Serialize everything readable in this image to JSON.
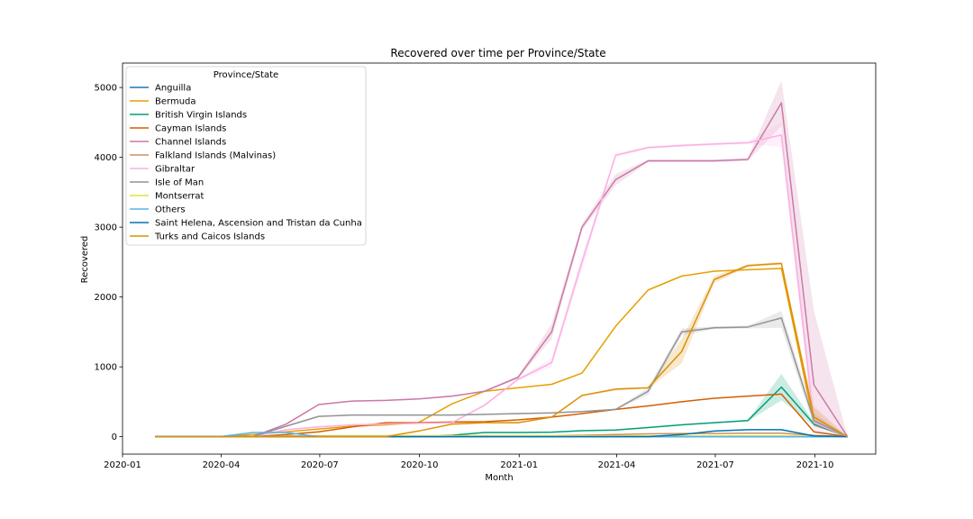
{
  "chart_data": {
    "type": "line",
    "title": "Recovered over time per Province/State",
    "xlabel": "Month",
    "ylabel": "Recovered",
    "xlim": [
      "2020-01-01",
      "2021-11-26"
    ],
    "ylim": [
      -250,
      5350
    ],
    "x_ticks": [
      {
        "date": "2020-01-01",
        "label": "2020-01"
      },
      {
        "date": "2020-04-01",
        "label": "2020-04"
      },
      {
        "date": "2020-07-01",
        "label": "2020-07"
      },
      {
        "date": "2020-10-01",
        "label": "2020-10"
      },
      {
        "date": "2021-01-01",
        "label": "2021-01"
      },
      {
        "date": "2021-04-01",
        "label": "2021-04"
      },
      {
        "date": "2021-07-01",
        "label": "2021-07"
      },
      {
        "date": "2021-10-01",
        "label": "2021-10"
      }
    ],
    "y_ticks": [
      0,
      1000,
      2000,
      3000,
      4000,
      5000
    ],
    "legend_title": "Province/State",
    "legend_position": "upper-left",
    "grid": false,
    "x": [
      "2020-01-31",
      "2020-02-29",
      "2020-03-31",
      "2020-04-30",
      "2020-05-31",
      "2020-06-30",
      "2020-07-31",
      "2020-08-31",
      "2020-09-30",
      "2020-10-31",
      "2020-11-30",
      "2020-12-31",
      "2021-01-31",
      "2021-02-28",
      "2021-03-31",
      "2021-04-30",
      "2021-05-31",
      "2021-06-30",
      "2021-07-31",
      "2021-08-31",
      "2021-09-30",
      "2021-10-31"
    ],
    "series": [
      {
        "name": "Anguilla",
        "color": "#1f77b4",
        "values": [
          0,
          0,
          0,
          0,
          0,
          0,
          0,
          0,
          0,
          0,
          0,
          0,
          0,
          0,
          0,
          0,
          0,
          0,
          0,
          0,
          0,
          0
        ]
      },
      {
        "name": "Bermuda",
        "color": "#e69f00",
        "values": [
          0,
          0,
          0,
          30,
          70,
          110,
          150,
          170,
          200,
          470,
          650,
          700,
          750,
          910,
          1580,
          2100,
          2300,
          2370,
          2390,
          2410,
          200,
          0
        ]
      },
      {
        "name": "British Virgin Islands",
        "color": "#009e73",
        "values": [
          0,
          0,
          0,
          0,
          0,
          0,
          0,
          0,
          0,
          20,
          60,
          60,
          65,
          85,
          95,
          130,
          170,
          200,
          230,
          710,
          180,
          0
        ],
        "band": [
          [
            0,
            0
          ],
          [
            0,
            0
          ],
          [
            0,
            0
          ],
          [
            0,
            0
          ],
          [
            0,
            0
          ],
          [
            0,
            0
          ],
          [
            0,
            0
          ],
          [
            0,
            0
          ],
          [
            0,
            0
          ],
          [
            15,
            25
          ],
          [
            55,
            65
          ],
          [
            55,
            65
          ],
          [
            60,
            70
          ],
          [
            80,
            90
          ],
          [
            90,
            100
          ],
          [
            125,
            135
          ],
          [
            165,
            175
          ],
          [
            195,
            205
          ],
          [
            220,
            240
          ],
          [
            520,
            900
          ],
          [
            150,
            210
          ],
          [
            0,
            0
          ]
        ]
      },
      {
        "name": "Cayman Islands",
        "color": "#d55e00",
        "values": [
          0,
          0,
          0,
          0,
          30,
          70,
          140,
          200,
          200,
          210,
          215,
          240,
          280,
          330,
          390,
          440,
          500,
          550,
          580,
          610,
          70,
          0
        ]
      },
      {
        "name": "Channel Islands",
        "color": "#cc79a7",
        "values": [
          0,
          0,
          0,
          0,
          180,
          460,
          510,
          520,
          540,
          580,
          650,
          850,
          1500,
          3000,
          3680,
          3950,
          3950,
          3950,
          3970,
          4780,
          740,
          0
        ],
        "band": [
          [
            0,
            0
          ],
          [
            0,
            0
          ],
          [
            0,
            0
          ],
          [
            0,
            0
          ],
          [
            170,
            190
          ],
          [
            450,
            470
          ],
          [
            500,
            520
          ],
          [
            510,
            530
          ],
          [
            530,
            550
          ],
          [
            570,
            590
          ],
          [
            640,
            660
          ],
          [
            830,
            870
          ],
          [
            1400,
            1620
          ],
          [
            2950,
            3050
          ],
          [
            3600,
            3760
          ],
          [
            3930,
            3970
          ],
          [
            3930,
            3970
          ],
          [
            3930,
            3970
          ],
          [
            3950,
            3990
          ],
          [
            4450,
            5100
          ],
          [
            150,
            1800
          ],
          [
            0,
            0
          ]
        ]
      },
      {
        "name": "Falkland Islands (Malvinas)",
        "color": "#ca9161",
        "values": [
          0,
          0,
          0,
          0,
          10,
          13,
          13,
          13,
          13,
          13,
          13,
          13,
          13,
          20,
          30,
          40,
          45,
          45,
          50,
          50,
          20,
          0
        ]
      },
      {
        "name": "Gibraltar",
        "color": "#fbafe4",
        "values": [
          0,
          0,
          0,
          0,
          100,
          140,
          170,
          180,
          190,
          200,
          450,
          820,
          1060,
          2500,
          4030,
          4140,
          4170,
          4190,
          4210,
          4320,
          200,
          0
        ],
        "band": [
          [
            0,
            0
          ],
          [
            0,
            0
          ],
          [
            0,
            0
          ],
          [
            0,
            0
          ],
          [
            90,
            110
          ],
          [
            130,
            150
          ],
          [
            160,
            180
          ],
          [
            170,
            190
          ],
          [
            180,
            200
          ],
          [
            190,
            210
          ],
          [
            430,
            470
          ],
          [
            800,
            840
          ],
          [
            1000,
            1120
          ],
          [
            2400,
            2600
          ],
          [
            4000,
            4060
          ],
          [
            4120,
            4160
          ],
          [
            4150,
            4190
          ],
          [
            4170,
            4210
          ],
          [
            4190,
            4230
          ],
          [
            4150,
            4500
          ],
          [
            50,
            450
          ],
          [
            0,
            0
          ]
        ]
      },
      {
        "name": "Isle of Man",
        "color": "#949494",
        "values": [
          0,
          0,
          0,
          0,
          150,
          290,
          310,
          310,
          310,
          310,
          320,
          330,
          340,
          360,
          390,
          650,
          1500,
          1560,
          1570,
          1700,
          230,
          0
        ],
        "band": [
          [
            0,
            0
          ],
          [
            0,
            0
          ],
          [
            0,
            0
          ],
          [
            0,
            0
          ],
          [
            140,
            160
          ],
          [
            280,
            300
          ],
          [
            300,
            320
          ],
          [
            300,
            320
          ],
          [
            300,
            320
          ],
          [
            300,
            320
          ],
          [
            310,
            330
          ],
          [
            320,
            340
          ],
          [
            330,
            350
          ],
          [
            350,
            370
          ],
          [
            380,
            400
          ],
          [
            600,
            700
          ],
          [
            1450,
            1550
          ],
          [
            1540,
            1580
          ],
          [
            1550,
            1590
          ],
          [
            1560,
            1800
          ],
          [
            150,
            330
          ],
          [
            0,
            0
          ]
        ]
      },
      {
        "name": "Montserrat",
        "color": "#ece133",
        "values": [
          0,
          0,
          0,
          0,
          5,
          10,
          12,
          12,
          12,
          12,
          12,
          12,
          12,
          12,
          12,
          12,
          12,
          12,
          12,
          12,
          5,
          0
        ]
      },
      {
        "name": "Others",
        "color": "#56b4e9",
        "values": [
          0,
          0,
          0,
          60,
          60,
          0,
          0,
          0,
          0,
          0,
          0,
          0,
          0,
          0,
          0,
          0,
          0,
          0,
          0,
          0,
          0,
          0
        ]
      },
      {
        "name": "Saint Helena, Ascension and Tristan da Cunha",
        "color": "#0173b2",
        "values": [
          0,
          0,
          0,
          0,
          0,
          0,
          0,
          0,
          0,
          0,
          0,
          0,
          0,
          0,
          0,
          0,
          30,
          80,
          100,
          100,
          10,
          0
        ]
      },
      {
        "name": "Turks and Caicos Islands",
        "color": "#de8f05",
        "values": [
          0,
          0,
          0,
          0,
          0,
          0,
          0,
          0,
          80,
          180,
          200,
          200,
          280,
          590,
          680,
          700,
          1220,
          2250,
          2450,
          2480,
          280,
          0
        ],
        "band": [
          [
            0,
            0
          ],
          [
            0,
            0
          ],
          [
            0,
            0
          ],
          [
            0,
            0
          ],
          [
            0,
            0
          ],
          [
            0,
            0
          ],
          [
            0,
            0
          ],
          [
            0,
            0
          ],
          [
            75,
            85
          ],
          [
            170,
            190
          ],
          [
            190,
            210
          ],
          [
            190,
            210
          ],
          [
            270,
            290
          ],
          [
            580,
            600
          ],
          [
            660,
            700
          ],
          [
            690,
            710
          ],
          [
            1050,
            1400
          ],
          [
            2200,
            2300
          ],
          [
            2430,
            2470
          ],
          [
            2460,
            2500
          ],
          [
            150,
            420
          ],
          [
            0,
            0
          ]
        ]
      }
    ]
  }
}
